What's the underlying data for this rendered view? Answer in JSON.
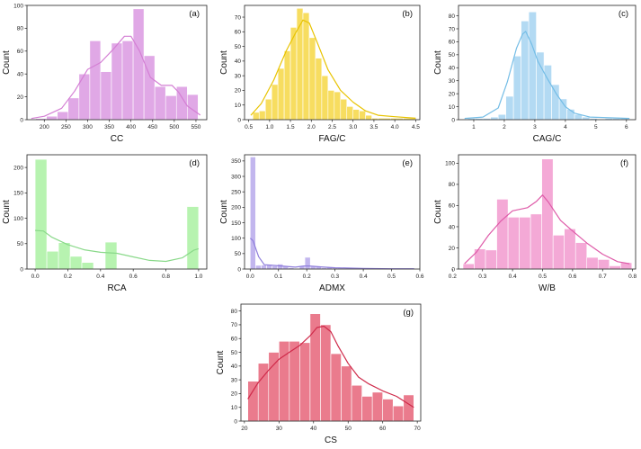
{
  "chart_data": [
    {
      "type": "histogram",
      "tag": "(a)",
      "xlabel": "CC",
      "ylabel": "Count",
      "color": "#d47fd4",
      "fill": "#e0a8e6",
      "xlim": [
        160,
        575
      ],
      "ylim": [
        0,
        100
      ],
      "xticks": [
        200,
        250,
        300,
        350,
        400,
        450,
        500,
        550
      ],
      "yticks": [
        0,
        20,
        40,
        60,
        80,
        100
      ],
      "bins": [
        180,
        205,
        230,
        255,
        280,
        305,
        330,
        355,
        380,
        405,
        430,
        455,
        480,
        505,
        530,
        555
      ],
      "counts": [
        1,
        3,
        7,
        19,
        40,
        69,
        42,
        67,
        69,
        97,
        56,
        29,
        21,
        29,
        22
      ],
      "kde": [
        [
          170,
          1
        ],
        [
          200,
          3
        ],
        [
          240,
          10
        ],
        [
          270,
          25
        ],
        [
          300,
          44
        ],
        [
          330,
          50
        ],
        [
          360,
          62
        ],
        [
          385,
          73
        ],
        [
          400,
          73
        ],
        [
          420,
          60
        ],
        [
          445,
          37
        ],
        [
          470,
          30
        ],
        [
          495,
          30
        ],
        [
          510,
          24
        ],
        [
          530,
          12
        ],
        [
          560,
          4
        ]
      ]
    },
    {
      "type": "histogram",
      "tag": "(b)",
      "xlabel": "FAG/C",
      "ylabel": "Count",
      "color": "#e8c300",
      "fill": "#f7dd60",
      "xlim": [
        0.4,
        4.6
      ],
      "ylim": [
        0,
        78
      ],
      "xticks": [
        0.5,
        1.0,
        1.5,
        2.0,
        2.5,
        3.0,
        3.5,
        4.0,
        4.5
      ],
      "yticks": [
        0,
        10,
        20,
        30,
        40,
        50,
        60,
        70
      ],
      "bins": [
        0.6,
        0.75,
        0.9,
        1.05,
        1.2,
        1.35,
        1.5,
        1.65,
        1.8,
        1.95,
        2.1,
        2.25,
        2.4,
        2.55,
        2.7,
        2.85,
        3.0,
        3.15,
        3.3,
        3.45,
        3.6,
        3.9,
        4.2,
        4.5
      ],
      "counts": [
        5,
        6,
        14,
        24,
        35,
        47,
        63,
        76,
        73,
        56,
        42,
        30,
        20,
        19,
        14,
        9,
        7,
        6,
        3,
        1,
        1,
        1,
        1
      ],
      "kde": [
        [
          0.55,
          3
        ],
        [
          0.8,
          11
        ],
        [
          1.1,
          27
        ],
        [
          1.4,
          47
        ],
        [
          1.6,
          58
        ],
        [
          1.8,
          68
        ],
        [
          1.95,
          66
        ],
        [
          2.15,
          52
        ],
        [
          2.4,
          34
        ],
        [
          2.7,
          20
        ],
        [
          3.0,
          12
        ],
        [
          3.3,
          6
        ],
        [
          3.6,
          3
        ],
        [
          4.0,
          2
        ],
        [
          4.5,
          1
        ]
      ]
    },
    {
      "type": "histogram",
      "tag": "(c)",
      "xlabel": "CAG/C",
      "ylabel": "Count",
      "color": "#74bde6",
      "fill": "#b3daf3",
      "xlim": [
        0.5,
        6.3
      ],
      "ylim": [
        0,
        88
      ],
      "xticks": [
        1,
        2,
        3,
        4,
        5,
        6
      ],
      "yticks": [
        0,
        10,
        20,
        30,
        40,
        50,
        60,
        70,
        80
      ],
      "bins": [
        0.8,
        1.05,
        1.3,
        1.55,
        1.8,
        2.05,
        2.3,
        2.55,
        2.8,
        3.05,
        3.3,
        3.55,
        3.8,
        4.05,
        4.3,
        4.55,
        4.8,
        5.05,
        5.3,
        5.55,
        5.8,
        6.05
      ],
      "counts": [
        1,
        1,
        1,
        2,
        4,
        18,
        49,
        76,
        83,
        52,
        42,
        27,
        16,
        8,
        4,
        2,
        1,
        0,
        1,
        1,
        1
      ],
      "kde": [
        [
          0.7,
          1
        ],
        [
          1.3,
          2
        ],
        [
          1.8,
          9
        ],
        [
          2.1,
          29
        ],
        [
          2.4,
          55
        ],
        [
          2.6,
          66
        ],
        [
          2.7,
          68
        ],
        [
          2.9,
          58
        ],
        [
          3.1,
          45
        ],
        [
          3.4,
          32
        ],
        [
          3.7,
          20
        ],
        [
          4.0,
          10
        ],
        [
          4.3,
          5
        ],
        [
          4.8,
          2
        ],
        [
          6.1,
          1
        ]
      ]
    },
    {
      "type": "histogram",
      "tag": "(d)",
      "xlabel": "RCA",
      "ylabel": "Count",
      "color": "#8ad98a",
      "fill": "#b7f3b0",
      "xlim": [
        -0.05,
        1.05
      ],
      "ylim": [
        0,
        225
      ],
      "xticks": [
        0.0,
        0.2,
        0.4,
        0.6,
        0.8,
        1.0
      ],
      "yticks": [
        0,
        50,
        100,
        150,
        200
      ],
      "bins": [
        0.0,
        0.0714,
        0.1429,
        0.2143,
        0.2857,
        0.3571,
        0.4286,
        0.5,
        0.5714,
        0.6429,
        0.7143,
        0.7857,
        0.8571,
        0.9286,
        1.0
      ],
      "counts": [
        216,
        35,
        52,
        25,
        13,
        0,
        53,
        0,
        0,
        0,
        0,
        0,
        0,
        123
      ],
      "kde": [
        [
          0.0,
          76
        ],
        [
          0.05,
          75
        ],
        [
          0.1,
          63
        ],
        [
          0.2,
          48
        ],
        [
          0.3,
          38
        ],
        [
          0.4,
          33
        ],
        [
          0.5,
          31
        ],
        [
          0.6,
          24
        ],
        [
          0.7,
          17
        ],
        [
          0.8,
          15
        ],
        [
          0.9,
          22
        ],
        [
          0.97,
          37
        ],
        [
          1.0,
          40
        ]
      ]
    },
    {
      "type": "histogram",
      "tag": "(e)",
      "xlabel": "ADMX",
      "ylabel": "Count",
      "color": "#8e7ddb",
      "fill": "#c2b6ee",
      "xlim": [
        -0.02,
        0.6
      ],
      "ylim": [
        0,
        370
      ],
      "xticks": [
        0.0,
        0.1,
        0.2,
        0.3,
        0.4,
        0.5,
        0.6
      ],
      "yticks": [
        0,
        50,
        100,
        150,
        200,
        250,
        300,
        350
      ],
      "bins": [
        0.0,
        0.0193,
        0.0387,
        0.058,
        0.0773,
        0.0967,
        0.116,
        0.1353,
        0.1547,
        0.174,
        0.1933,
        0.2127,
        0.232,
        0.2513,
        0.2707,
        0.29,
        0.3093,
        0.3287,
        0.348,
        0.3673,
        0.3867,
        0.406,
        0.4253,
        0.4447,
        0.464,
        0.4833,
        0.5027,
        0.522,
        0.5413,
        0.5607,
        0.58
      ],
      "counts": [
        363,
        12,
        13,
        15,
        10,
        16,
        8,
        4,
        1,
        9,
        38,
        8,
        9,
        4,
        6,
        3,
        3,
        1,
        2,
        1,
        1,
        1,
        1,
        1,
        1,
        1,
        1,
        1,
        1,
        1
      ],
      "kde": [
        [
          0.0,
          100
        ],
        [
          0.01,
          92
        ],
        [
          0.03,
          40
        ],
        [
          0.05,
          14
        ],
        [
          0.08,
          12
        ],
        [
          0.12,
          9
        ],
        [
          0.16,
          6
        ],
        [
          0.19,
          10
        ],
        [
          0.21,
          10
        ],
        [
          0.25,
          7
        ],
        [
          0.3,
          4
        ],
        [
          0.4,
          2
        ],
        [
          0.5,
          1
        ],
        [
          0.58,
          1
        ]
      ]
    },
    {
      "type": "histogram",
      "tag": "(f)",
      "xlabel": "W/B",
      "ylabel": "Count",
      "color": "#de5aa8",
      "fill": "#f4a9d6",
      "xlim": [
        0.22,
        0.81
      ],
      "ylim": [
        0,
        108
      ],
      "xticks": [
        0.2,
        0.3,
        0.4,
        0.5,
        0.6,
        0.7,
        0.8
      ],
      "yticks": [
        0,
        20,
        40,
        60,
        80,
        100
      ],
      "bins": [
        0.235,
        0.2725,
        0.31,
        0.3475,
        0.385,
        0.4225,
        0.46,
        0.4975,
        0.535,
        0.5725,
        0.61,
        0.6475,
        0.685,
        0.7225,
        0.76,
        0.7975
      ],
      "counts": [
        5,
        19,
        18,
        66,
        49,
        49,
        52,
        104,
        32,
        38,
        25,
        11,
        9,
        3,
        6
      ],
      "kde": [
        [
          0.24,
          5
        ],
        [
          0.28,
          16
        ],
        [
          0.32,
          32
        ],
        [
          0.36,
          45
        ],
        [
          0.4,
          55
        ],
        [
          0.45,
          58
        ],
        [
          0.48,
          64
        ],
        [
          0.5,
          70
        ],
        [
          0.52,
          63
        ],
        [
          0.56,
          46
        ],
        [
          0.6,
          36
        ],
        [
          0.65,
          24
        ],
        [
          0.7,
          14
        ],
        [
          0.75,
          7
        ],
        [
          0.79,
          5
        ]
      ]
    },
    {
      "type": "histogram",
      "tag": "(g)",
      "xlabel": "CS",
      "ylabel": "Count",
      "color": "#cf2a4a",
      "fill": "#ea7b8d",
      "xlim": [
        19,
        71
      ],
      "ylim": [
        0,
        85
      ],
      "xticks": [
        20,
        30,
        40,
        50,
        60,
        70
      ],
      "yticks": [
        0,
        10,
        20,
        30,
        40,
        50,
        60,
        70,
        80
      ],
      "bins": [
        21,
        24,
        27,
        30,
        33,
        36,
        39,
        42,
        45,
        48,
        51,
        54,
        57,
        60,
        63,
        66,
        69
      ],
      "counts": [
        29,
        42,
        50,
        58,
        58,
        57,
        78,
        70,
        49,
        40,
        26,
        18,
        21,
        16,
        11,
        19
      ],
      "kde": [
        [
          21,
          16
        ],
        [
          24,
          28
        ],
        [
          27,
          37
        ],
        [
          30,
          45
        ],
        [
          33,
          50
        ],
        [
          36,
          55
        ],
        [
          39,
          62
        ],
        [
          41,
          68
        ],
        [
          43,
          69
        ],
        [
          45,
          65
        ],
        [
          47,
          55
        ],
        [
          50,
          42
        ],
        [
          53,
          32
        ],
        [
          56,
          27
        ],
        [
          60,
          22
        ],
        [
          64,
          18
        ],
        [
          69,
          10
        ]
      ]
    }
  ]
}
